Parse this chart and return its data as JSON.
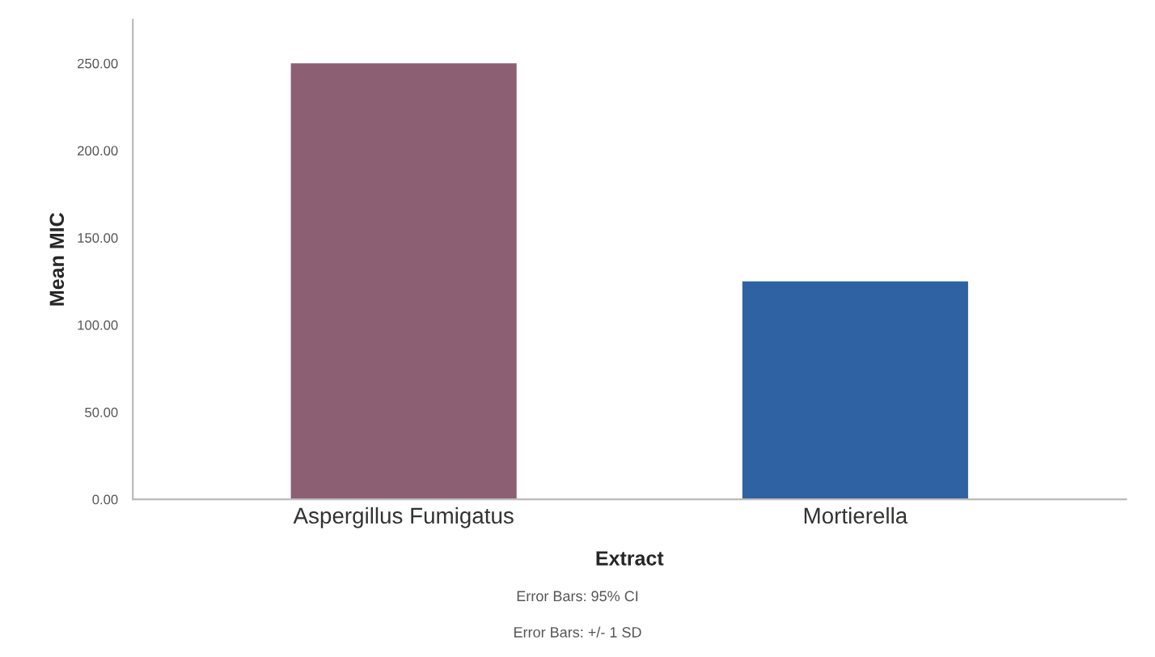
{
  "chart_data": {
    "type": "bar",
    "xlabel": "Extract",
    "ylabel": "Mean MIC",
    "categories": [
      "Aspergillus Fumigatus",
      "Mortierella"
    ],
    "values": [
      250,
      125
    ],
    "colors": [
      "#8c5f73",
      "#2f62a3"
    ],
    "ylim": [
      0,
      275
    ],
    "yticks": [
      {
        "value": 0,
        "label": "0.00"
      },
      {
        "value": 50,
        "label": "50.00"
      },
      {
        "value": 100,
        "label": "100.00"
      },
      {
        "value": 150,
        "label": "150.00"
      },
      {
        "value": 200,
        "label": "200.00"
      },
      {
        "value": 250,
        "label": "250.00"
      }
    ],
    "grid": false,
    "annotations": [
      "Error Bars: 95% CI",
      "Error Bars: +/- 1 SD"
    ]
  }
}
